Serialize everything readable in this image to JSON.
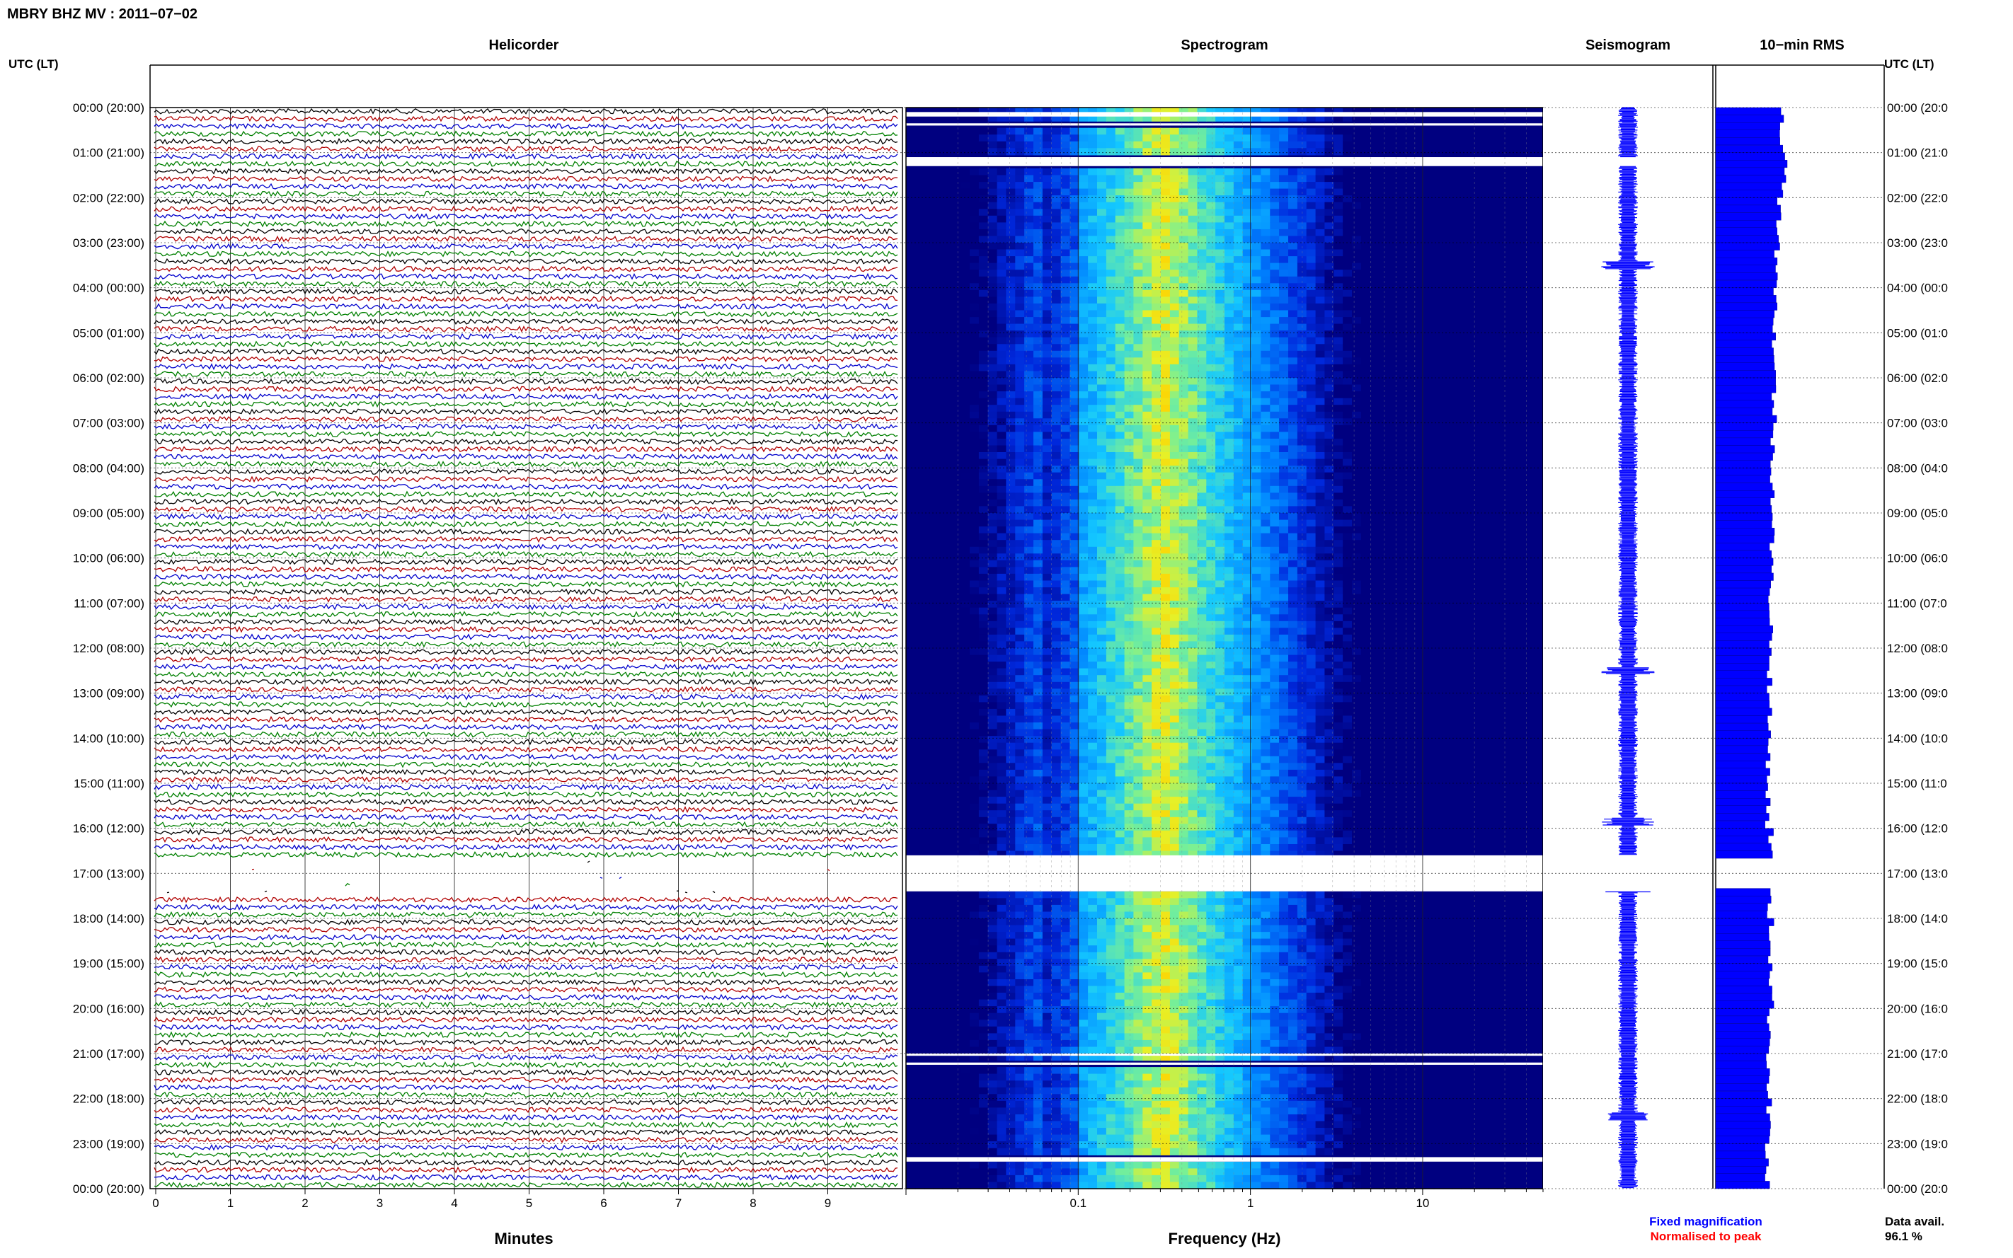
{
  "header": {
    "title": "MBRY BHZ MV : 2011−07−02",
    "left_axis_label": "UTC (LT)",
    "right_axis_label": "UTC (LT)"
  },
  "panels": {
    "helicorder": "Helicorder",
    "spectrogram": "Spectrogram",
    "seismogram": "Seismogram",
    "rms": "10−min RMS"
  },
  "footer": {
    "x_label_minutes": "Minutes",
    "x_label_frequency": "Frequency (Hz)",
    "legend_fixed": "Fixed magnification",
    "legend_normalised": "Normalised to peak",
    "data_avail_label": "Data avail.",
    "data_avail_value": "96.1 %"
  },
  "colors": {
    "trace_cycle": [
      "#000000",
      "#b00000",
      "#0000cc",
      "#008000"
    ],
    "seismogram": "#0000ff",
    "rms": "#0000ff",
    "legend_fixed": "#0000ff",
    "legend_normalised": "#ff0000",
    "spectrogram_background": "#000080"
  },
  "chart_data": {
    "type": "heatmap",
    "time_labels_left": [
      "00:00 (20:00)",
      "01:00 (21:00)",
      "02:00 (22:00)",
      "03:00 (23:00)",
      "04:00 (00:00)",
      "05:00 (01:00)",
      "06:00 (02:00)",
      "07:00 (03:00)",
      "08:00 (04:00)",
      "09:00 (05:00)",
      "10:00 (06:00)",
      "11:00 (07:00)",
      "12:00 (08:00)",
      "13:00 (09:00)",
      "14:00 (10:00)",
      "15:00 (11:00)",
      "16:00 (12:00)",
      "17:00 (13:00)",
      "18:00 (14:00)",
      "19:00 (15:00)",
      "20:00 (16:00)",
      "21:00 (17:00)",
      "22:00 (18:00)",
      "23:00 (19:00)",
      "00:00 (20:00)"
    ],
    "time_labels_right": [
      "00:00 (20:0",
      "01:00 (21:0",
      "02:00 (22:0",
      "03:00 (23:0",
      "04:00 (00:0",
      "05:00 (01:0",
      "06:00 (02:0",
      "07:00 (03:0",
      "08:00 (04:0",
      "09:00 (05:0",
      "10:00 (06:0",
      "11:00 (07:0",
      "12:00 (08:0",
      "13:00 (09:0",
      "14:00 (10:0",
      "15:00 (11:0",
      "16:00 (12:0",
      "17:00 (13:0",
      "18:00 (14:0",
      "19:00 (15:0",
      "20:00 (16:0",
      "21:00 (17:0",
      "22:00 (18:0",
      "23:00 (19:0",
      "00:00 (20:0"
    ],
    "helicorder": {
      "xlabel": "Minutes",
      "x_ticks": [
        "0",
        "1",
        "2",
        "3",
        "4",
        "5",
        "6",
        "7",
        "8",
        "9"
      ],
      "xlim": [
        0,
        10
      ],
      "rows_per_hour": 6,
      "hours": 24
    },
    "spectrogram": {
      "xlabel": "Frequency (Hz)",
      "x_scale": "log",
      "xlim": [
        0.01,
        50
      ],
      "x_ticks": [
        "0.1",
        "1",
        "10"
      ],
      "peak_band_hz": [
        0.2,
        0.5
      ],
      "gaps_hours": [
        [
          0.1,
          0.2
        ],
        [
          0.35,
          0.4
        ],
        [
          1.1,
          1.3
        ],
        [
          16.6,
          17.4
        ],
        [
          21.0,
          21.05
        ],
        [
          21.2,
          21.25
        ],
        [
          23.3,
          23.4
        ]
      ]
    },
    "seismogram": {
      "gaps_hours": [
        [
          1.1,
          1.3
        ],
        [
          16.6,
          17.4
        ]
      ],
      "event_hours": [
        3.5,
        12.5,
        15.85,
        17.35,
        22.4
      ]
    },
    "rms": {
      "interval_minutes": 10,
      "relative_level_by_hour": [
        0.62,
        0.65,
        0.6,
        0.58,
        0.56,
        0.55,
        0.55,
        0.54,
        0.54,
        0.53,
        0.52,
        0.52,
        0.51,
        0.5,
        0.5,
        0.49,
        0.52,
        0.5,
        0.52,
        0.52,
        0.51,
        0.5,
        0.5,
        0.48
      ],
      "gaps_hours": [
        [
          16.6,
          17.4
        ]
      ]
    }
  }
}
